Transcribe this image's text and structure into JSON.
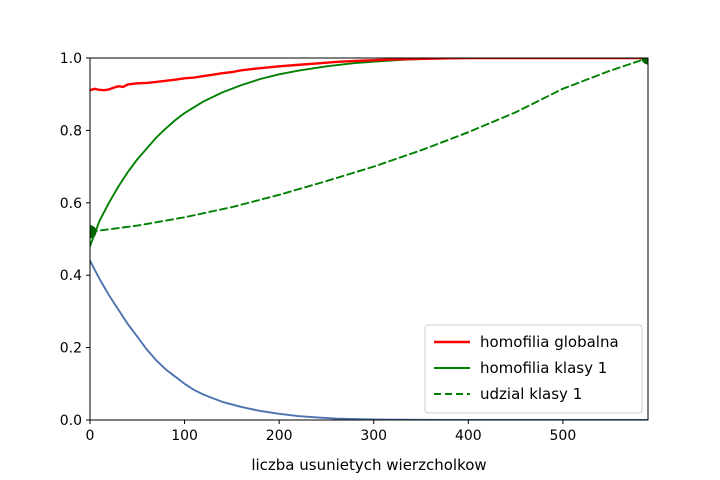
{
  "chart_data": {
    "type": "line",
    "xlabel": "liczba usunietych wierzcholkow",
    "ylabel": "",
    "xlim": [
      0,
      590
    ],
    "ylim": [
      0,
      1.0
    ],
    "xticks": [
      0,
      100,
      200,
      300,
      400,
      500
    ],
    "yticks": [
      0.0,
      0.2,
      0.4,
      0.6,
      0.8,
      1.0
    ],
    "grid": false,
    "legend_position": "lower-right",
    "series": [
      {
        "name": "homofilia globalna",
        "color": "#ff0000",
        "style": "solid",
        "in_legend": true,
        "x": [
          0,
          5,
          10,
          15,
          20,
          25,
          30,
          35,
          40,
          50,
          60,
          70,
          80,
          90,
          100,
          110,
          120,
          130,
          140,
          150,
          160,
          170,
          180,
          200,
          220,
          240,
          260,
          280,
          300,
          320,
          340,
          360,
          380,
          400,
          450,
          500,
          550,
          590
        ],
        "y": [
          0.911,
          0.915,
          0.912,
          0.911,
          0.913,
          0.918,
          0.922,
          0.92,
          0.927,
          0.93,
          0.931,
          0.934,
          0.937,
          0.94,
          0.944,
          0.946,
          0.95,
          0.954,
          0.958,
          0.961,
          0.966,
          0.969,
          0.972,
          0.977,
          0.981,
          0.985,
          0.989,
          0.992,
          0.994,
          0.996,
          0.997,
          0.998,
          0.999,
          1.0,
          1.0,
          1.0,
          1.0,
          1.0
        ]
      },
      {
        "name": "homofilia klasy 1",
        "color": "#008000",
        "style": "solid",
        "in_legend": true,
        "x": [
          0,
          10,
          20,
          30,
          40,
          50,
          60,
          70,
          80,
          90,
          100,
          120,
          140,
          160,
          180,
          200,
          220,
          250,
          280,
          300,
          330,
          360,
          400,
          450,
          500,
          550,
          590
        ],
        "y": [
          0.48,
          0.55,
          0.6,
          0.645,
          0.685,
          0.72,
          0.75,
          0.78,
          0.805,
          0.828,
          0.848,
          0.88,
          0.905,
          0.925,
          0.942,
          0.955,
          0.965,
          0.977,
          0.986,
          0.99,
          0.995,
          0.998,
          1.0,
          1.0,
          1.0,
          1.0,
          1.0
        ]
      },
      {
        "name": "udzial klasy 1",
        "color": "#008000",
        "style": "dashed",
        "in_legend": true,
        "x": [
          0,
          50,
          100,
          150,
          200,
          250,
          300,
          350,
          400,
          450,
          500,
          550,
          590
        ],
        "y": [
          0.52,
          0.537,
          0.56,
          0.588,
          0.622,
          0.66,
          0.7,
          0.745,
          0.795,
          0.85,
          0.915,
          0.965,
          1.0
        ]
      },
      {
        "name": "",
        "color": "#4c72b0",
        "style": "solid",
        "in_legend": false,
        "x": [
          0,
          10,
          20,
          30,
          40,
          50,
          60,
          70,
          80,
          90,
          100,
          110,
          120,
          140,
          160,
          180,
          200,
          220,
          240,
          260,
          280,
          300,
          350,
          400,
          450,
          500,
          550,
          590
        ],
        "y": [
          0.44,
          0.39,
          0.345,
          0.305,
          0.265,
          0.23,
          0.195,
          0.165,
          0.14,
          0.12,
          0.1,
          0.083,
          0.07,
          0.05,
          0.036,
          0.025,
          0.017,
          0.011,
          0.007,
          0.004,
          0.0025,
          0.0015,
          0.0005,
          0.0,
          0.0,
          0.0,
          0.0,
          0.0
        ]
      }
    ],
    "markers": [
      {
        "x": 0,
        "y": 0.52,
        "color": "#006400"
      },
      {
        "x": 590,
        "y": 1.0,
        "color": "#006400"
      }
    ]
  }
}
